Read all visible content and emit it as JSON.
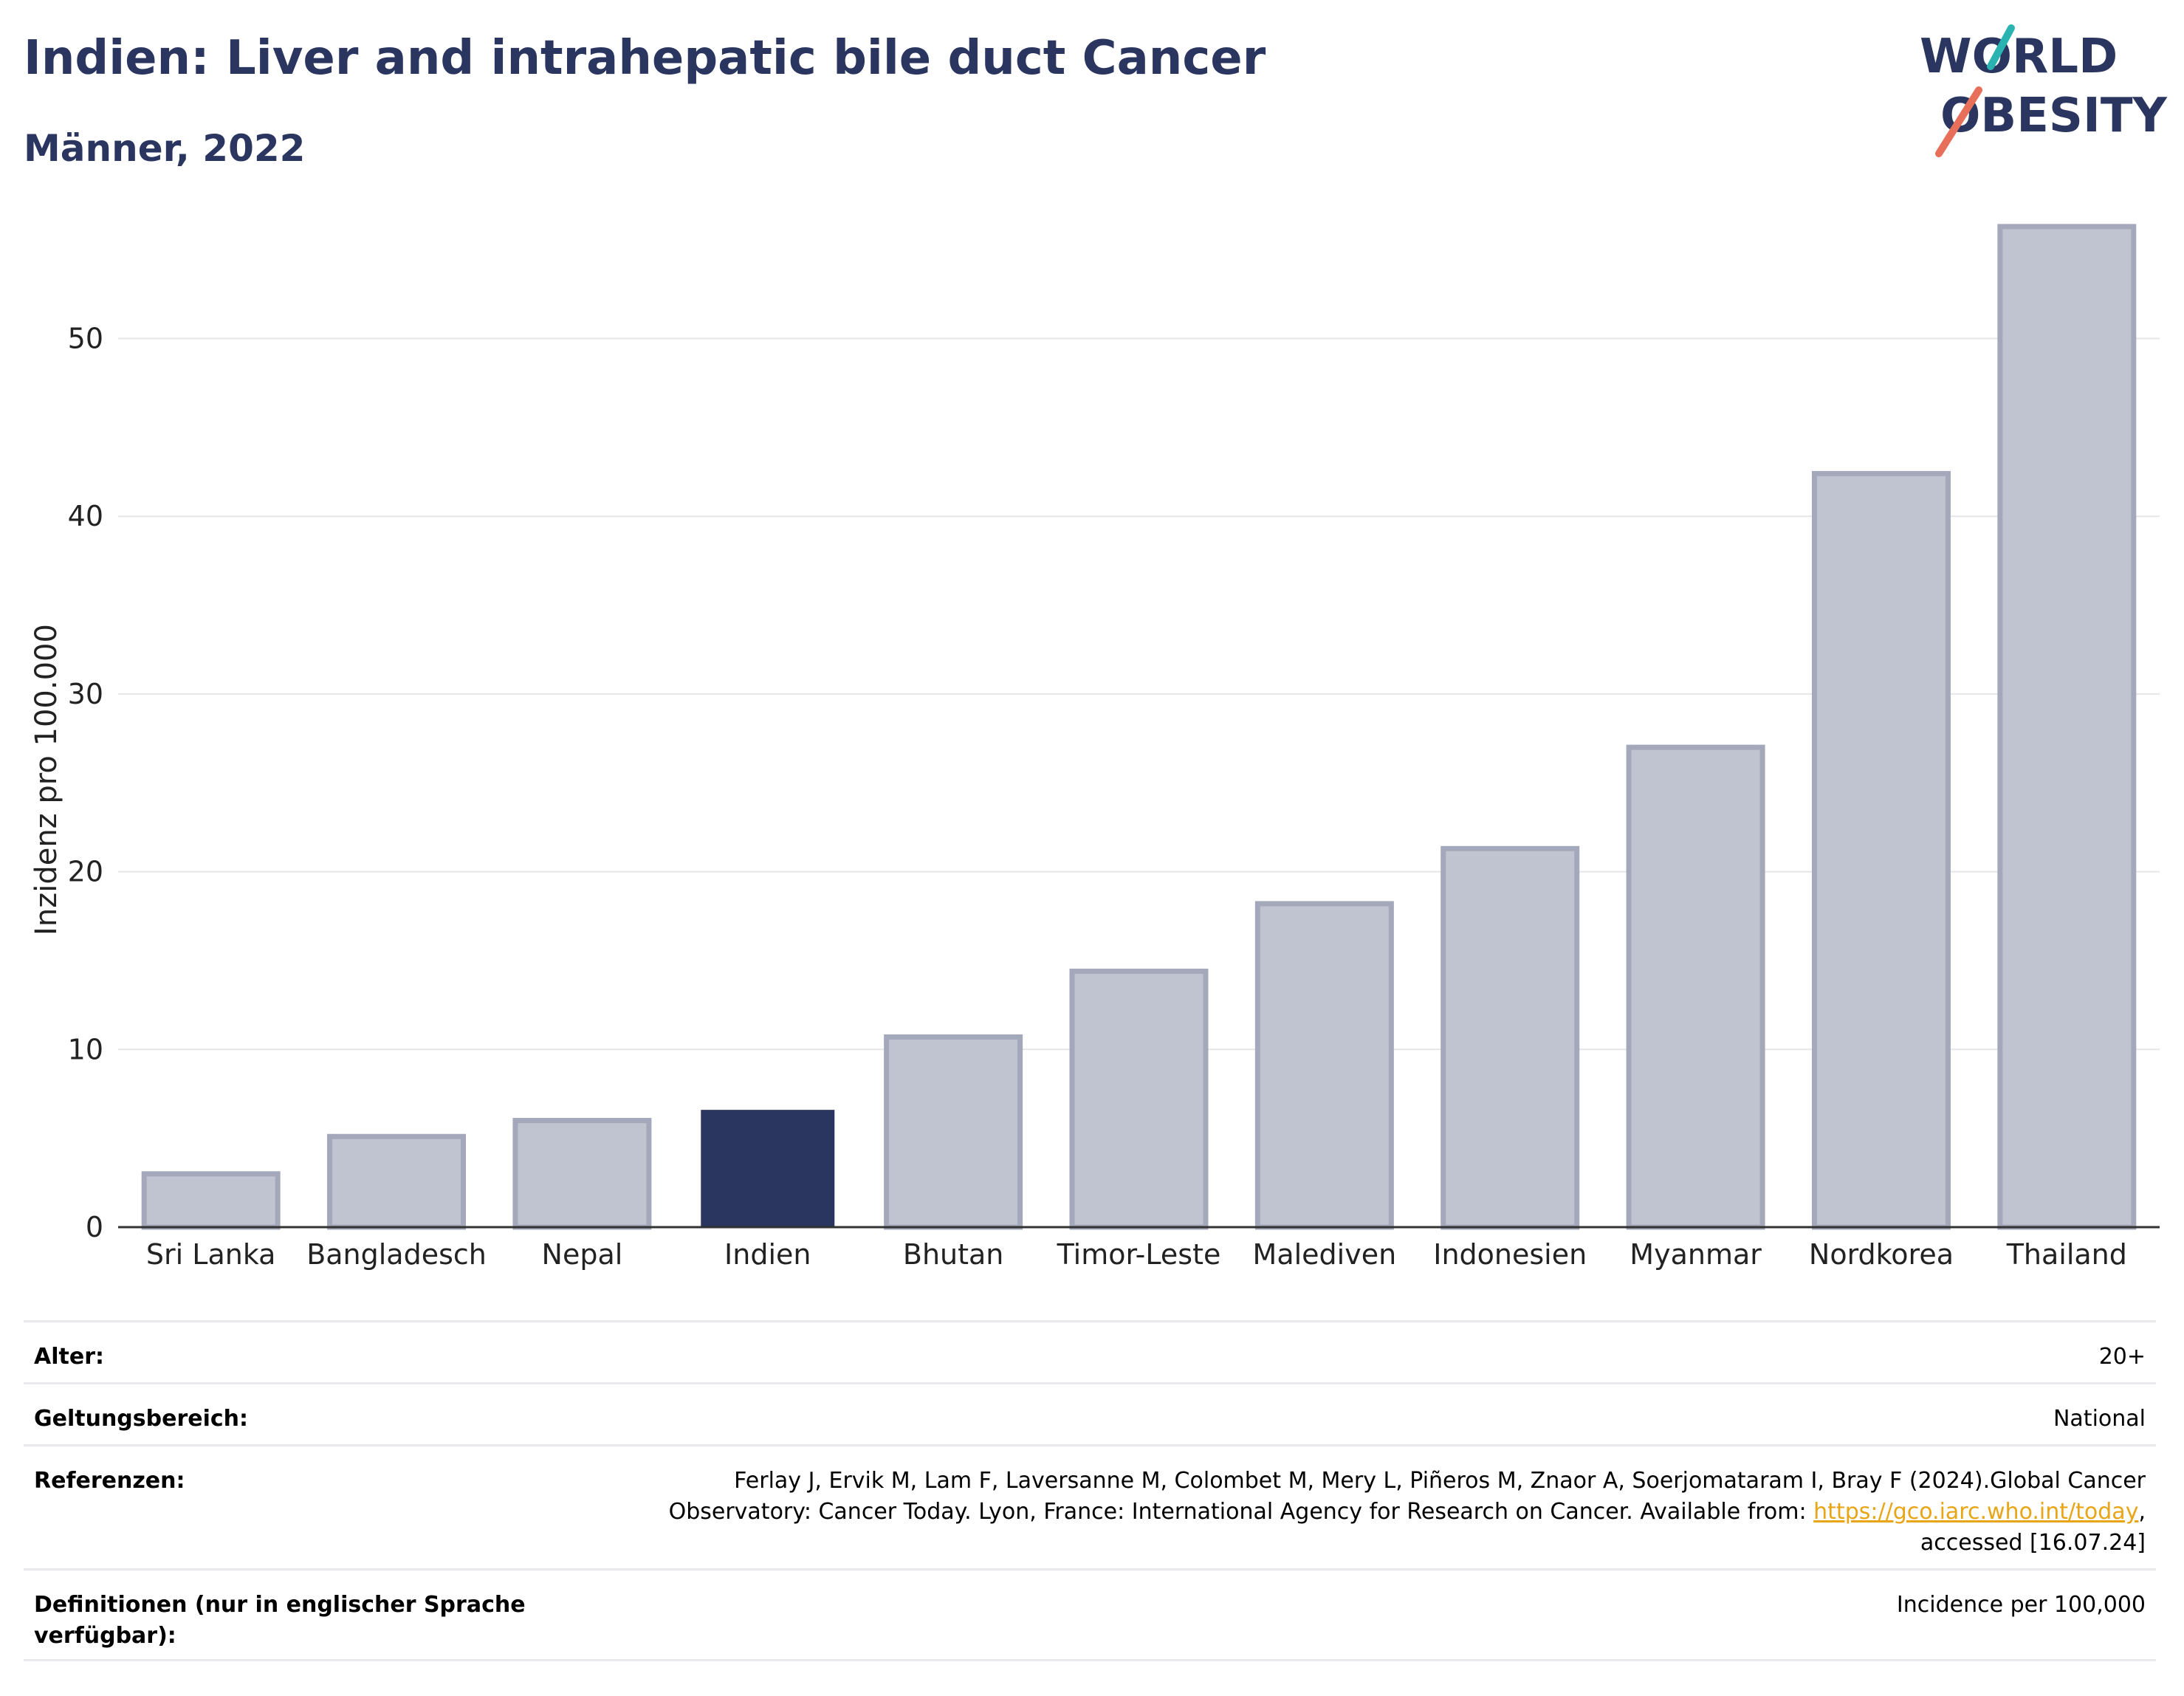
{
  "header": {
    "title": "Indien: Liver and intrahepatic bile duct Cancer",
    "subtitle": "Männer, 2022"
  },
  "logo": {
    "line1": "WORLD",
    "line2": "OBESITY",
    "text_color": "#2a3560",
    "accent_teal": "#2bb3b1",
    "accent_coral": "#e8705a"
  },
  "chart_data": {
    "type": "bar",
    "categories": [
      "Sri Lanka",
      "Bangladesch",
      "Nepal",
      "Indien",
      "Bhutan",
      "Timor-Leste",
      "Malediven",
      "Indonesien",
      "Myanmar",
      "Nordkorea",
      "Thailand"
    ],
    "values": [
      3.0,
      5.1,
      6.0,
      6.6,
      10.7,
      14.4,
      18.2,
      21.3,
      27.0,
      42.4,
      56.3
    ],
    "highlight": "Indien",
    "ylabel": "Inzidenz pro 100.000",
    "xlabel": "",
    "ylim": [
      0,
      57
    ],
    "yticks": [
      0,
      10,
      20,
      30,
      40,
      50
    ],
    "grid": true,
    "colors": {
      "bar": "#c0c3d0",
      "bar_border": "#a4a8bb",
      "highlight": "#2a3560",
      "grid": "#e6e6e6",
      "axis": "#333333"
    }
  },
  "info": {
    "age_label": "Alter:",
    "age_value": "20+",
    "scope_label": "Geltungsbereich:",
    "scope_value": "National",
    "ref_label": "Referenzen:",
    "ref_text_1": "Ferlay J, Ervik M, Lam F, Laversanne M, Colombet M, Mery L, Piñeros M, Znaor A, Soerjomataram I, Bray F (2024).Global Cancer Observatory: Cancer Today. Lyon, France: International Agency for Research on Cancer. Available from: ",
    "ref_link": "https://gco.iarc.who.int/today",
    "ref_text_2": ", accessed [16.07.24]",
    "def_label": "Definitionen (nur in englischer Sprache verfügbar):",
    "def_value": "Incidence per 100,000"
  }
}
